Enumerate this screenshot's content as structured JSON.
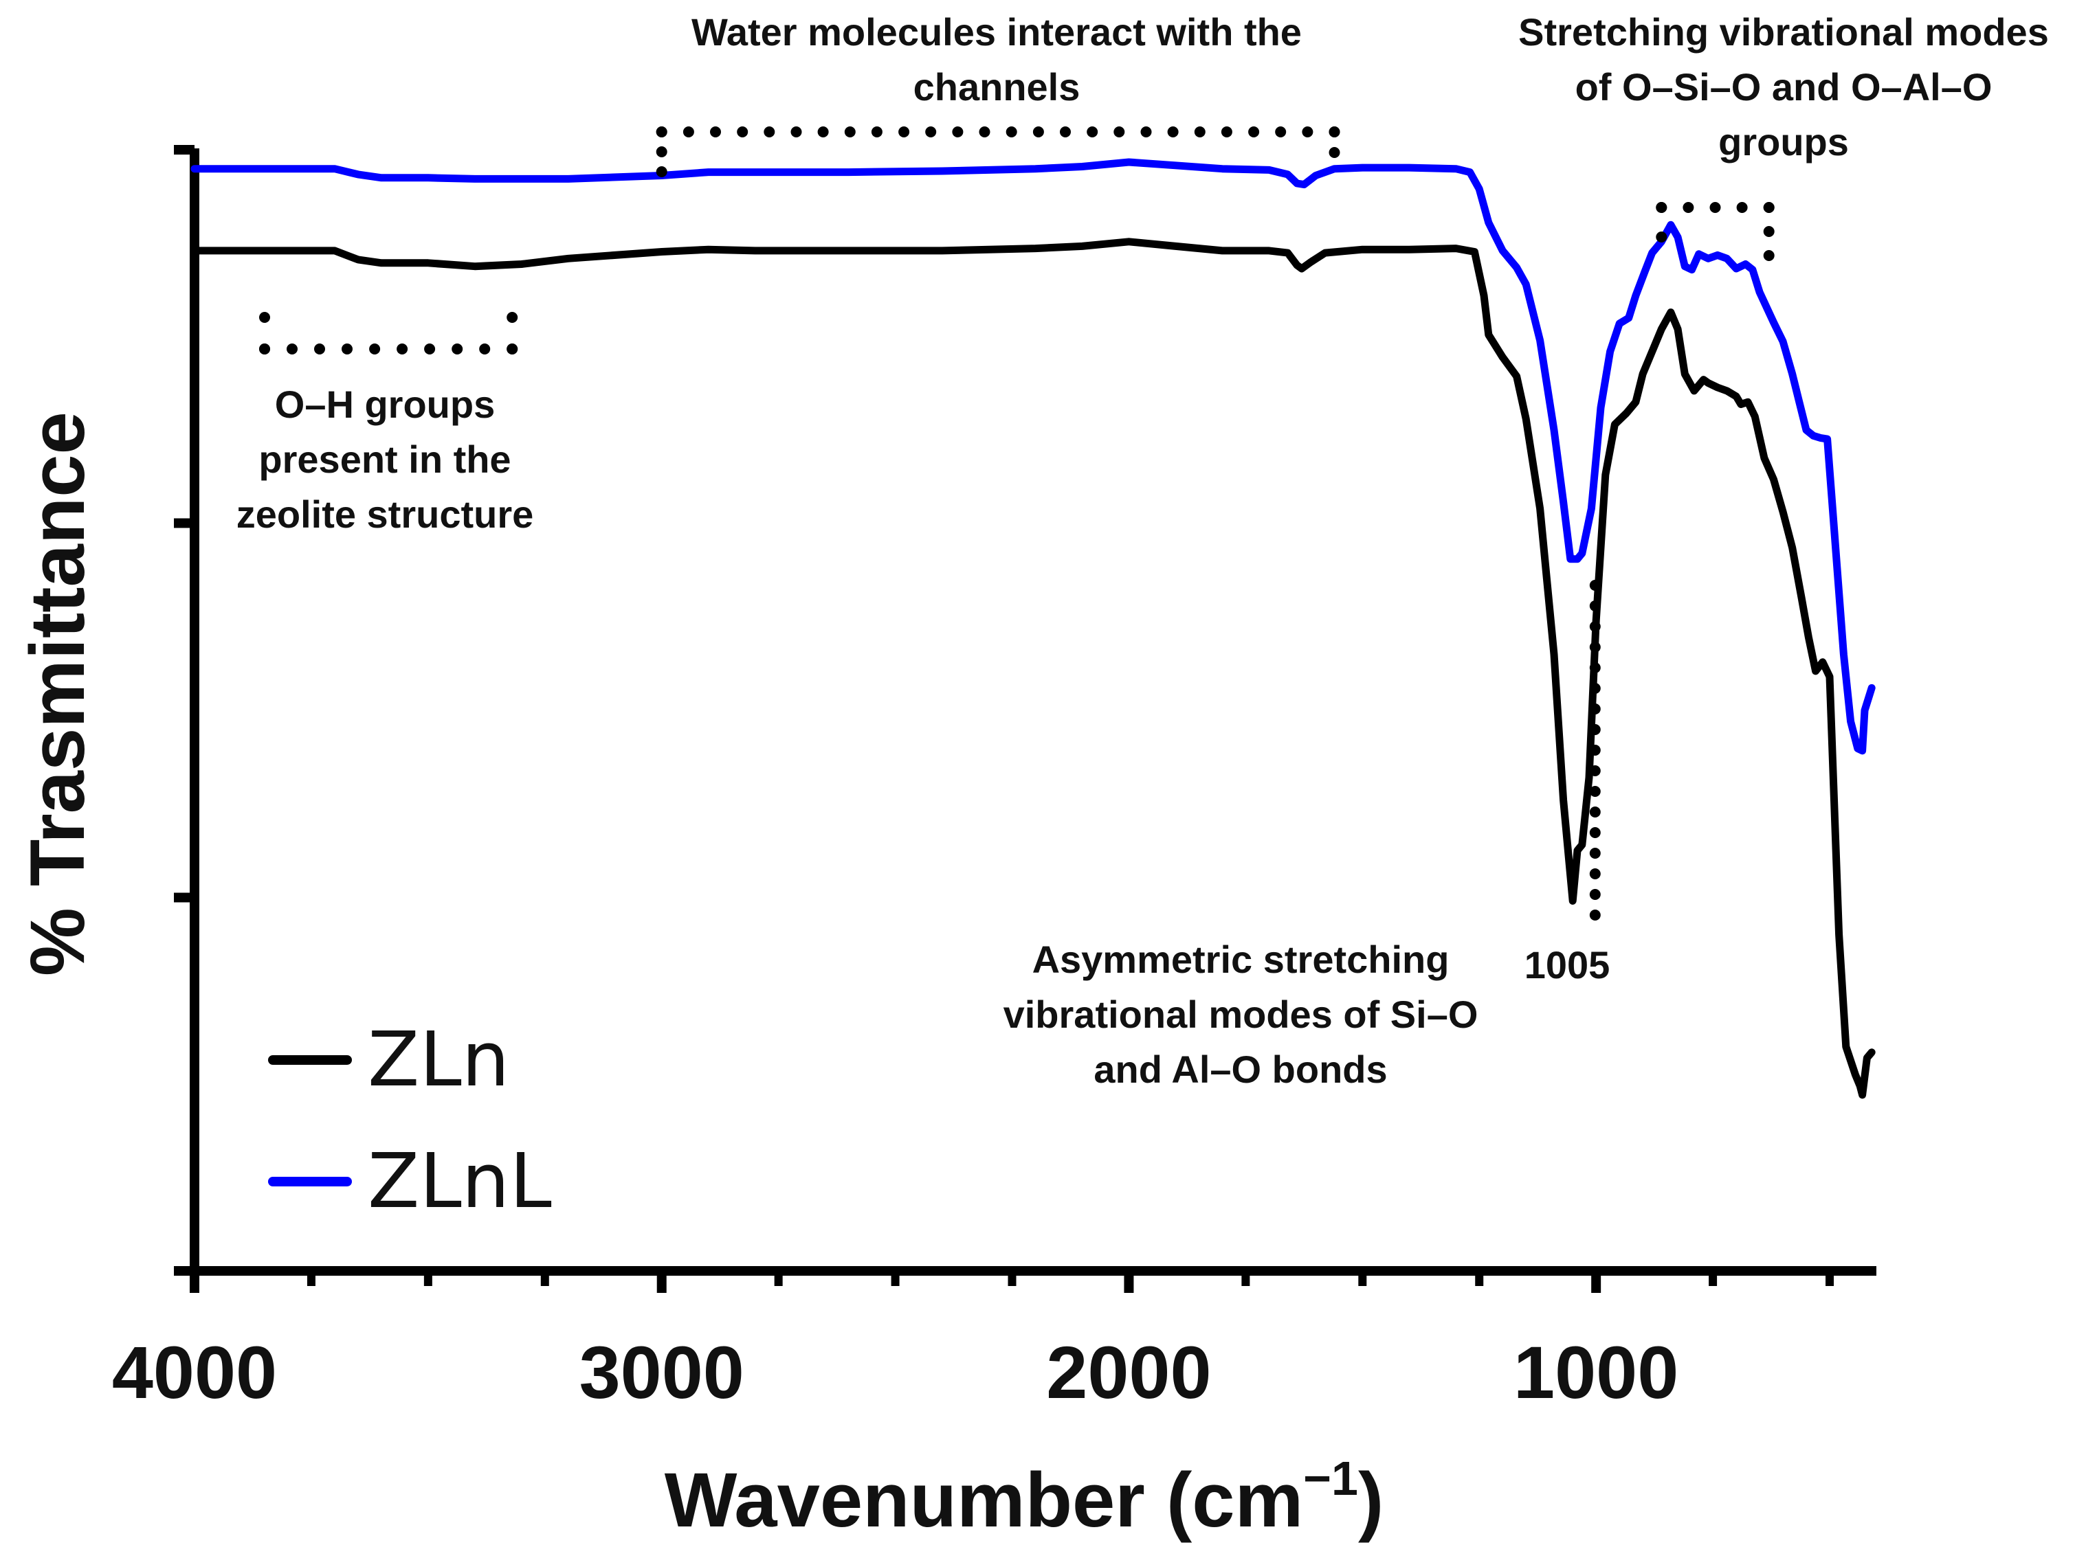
{
  "chart_data": {
    "type": "line",
    "title": "",
    "xlabel": "Wavenumber (cm",
    "xlabel_sup": "−1",
    "xlabel_close": ")",
    "ylabel": "% Trasmittance",
    "xlim": [
      4000,
      400
    ],
    "x_reversed": true,
    "ylim": [
      0,
      100
    ],
    "x_ticks_major": [
      4000,
      3000,
      2000,
      1000
    ],
    "x_ticks_minor": [
      3750,
      3500,
      3250,
      2750,
      2500,
      2250,
      1750,
      1500,
      1250,
      750,
      500
    ],
    "x_tick_labels": [
      "4000",
      "3000",
      "2000",
      "1000"
    ],
    "y_tick_positions": [
      0,
      33.3,
      66.7,
      100
    ],
    "y_tick_labels_shown": false,
    "grid": false,
    "legend_position": "bottom-left",
    "series": [
      {
        "name": "ZLn",
        "color": "#000000",
        "points": [
          [
            4000,
            91
          ],
          [
            3700,
            91
          ],
          [
            3650,
            90.2
          ],
          [
            3600,
            89.9
          ],
          [
            3500,
            89.9
          ],
          [
            3400,
            89.6
          ],
          [
            3300,
            89.8
          ],
          [
            3200,
            90.3
          ],
          [
            3000,
            90.9
          ],
          [
            2900,
            91.1
          ],
          [
            2800,
            91
          ],
          [
            2600,
            91
          ],
          [
            2400,
            91
          ],
          [
            2200,
            91.2
          ],
          [
            2100,
            91.4
          ],
          [
            2000,
            91.8
          ],
          [
            1900,
            91.4
          ],
          [
            1800,
            91
          ],
          [
            1700,
            91
          ],
          [
            1660,
            90.8
          ],
          [
            1640,
            89.7
          ],
          [
            1630,
            89.4
          ],
          [
            1610,
            90
          ],
          [
            1580,
            90.8
          ],
          [
            1500,
            91.1
          ],
          [
            1400,
            91.1
          ],
          [
            1300,
            91.2
          ],
          [
            1260,
            90.9
          ],
          [
            1240,
            87
          ],
          [
            1230,
            83.5
          ],
          [
            1200,
            81.5
          ],
          [
            1170,
            79.8
          ],
          [
            1150,
            76
          ],
          [
            1120,
            68
          ],
          [
            1090,
            55
          ],
          [
            1070,
            42
          ],
          [
            1050,
            33
          ],
          [
            1040,
            37.5
          ],
          [
            1030,
            38
          ],
          [
            1015,
            44
          ],
          [
            1000,
            58
          ],
          [
            980,
            71
          ],
          [
            960,
            75.5
          ],
          [
            935,
            76.5
          ],
          [
            915,
            77.5
          ],
          [
            900,
            80
          ],
          [
            880,
            82
          ],
          [
            860,
            84
          ],
          [
            840,
            85.5
          ],
          [
            825,
            84
          ],
          [
            810,
            80
          ],
          [
            790,
            78.5
          ],
          [
            770,
            79.5
          ],
          [
            760,
            79.2
          ],
          [
            740,
            78.8
          ],
          [
            720,
            78.5
          ],
          [
            700,
            78
          ],
          [
            690,
            77.3
          ],
          [
            675,
            77.5
          ],
          [
            660,
            76.2
          ],
          [
            640,
            72.5
          ],
          [
            620,
            70.6
          ],
          [
            600,
            67.7
          ],
          [
            580,
            64.5
          ],
          [
            560,
            60
          ],
          [
            545,
            56.5
          ],
          [
            530,
            53.5
          ],
          [
            515,
            54.3
          ],
          [
            500,
            53
          ],
          [
            480,
            30
          ],
          [
            465,
            20
          ],
          [
            445,
            17.5
          ],
          [
            435,
            16.5
          ],
          [
            430,
            15.7
          ],
          [
            420,
            19
          ],
          [
            410,
            19.5
          ]
        ]
      },
      {
        "name": "ZLnL",
        "color": "#0000ff",
        "points": [
          [
            4000,
            98.3
          ],
          [
            3700,
            98.3
          ],
          [
            3650,
            97.8
          ],
          [
            3600,
            97.5
          ],
          [
            3500,
            97.5
          ],
          [
            3400,
            97.4
          ],
          [
            3200,
            97.4
          ],
          [
            3000,
            97.7
          ],
          [
            2900,
            98
          ],
          [
            2800,
            98
          ],
          [
            2600,
            98
          ],
          [
            2400,
            98.1
          ],
          [
            2200,
            98.3
          ],
          [
            2100,
            98.5
          ],
          [
            2000,
            98.9
          ],
          [
            1900,
            98.6
          ],
          [
            1800,
            98.3
          ],
          [
            1700,
            98.2
          ],
          [
            1660,
            97.8
          ],
          [
            1640,
            97
          ],
          [
            1625,
            96.9
          ],
          [
            1600,
            97.7
          ],
          [
            1560,
            98.3
          ],
          [
            1500,
            98.4
          ],
          [
            1400,
            98.4
          ],
          [
            1300,
            98.3
          ],
          [
            1270,
            98
          ],
          [
            1250,
            96.5
          ],
          [
            1230,
            93.5
          ],
          [
            1200,
            91
          ],
          [
            1170,
            89.5
          ],
          [
            1150,
            88
          ],
          [
            1120,
            83
          ],
          [
            1090,
            75
          ],
          [
            1070,
            68.6
          ],
          [
            1055,
            63.5
          ],
          [
            1040,
            63.5
          ],
          [
            1030,
            64
          ],
          [
            1010,
            68
          ],
          [
            990,
            77
          ],
          [
            970,
            82
          ],
          [
            950,
            84.5
          ],
          [
            930,
            85
          ],
          [
            915,
            87
          ],
          [
            895,
            89.2
          ],
          [
            880,
            90.8
          ],
          [
            860,
            91.8
          ],
          [
            840,
            93.3
          ],
          [
            825,
            92.2
          ],
          [
            810,
            89.6
          ],
          [
            795,
            89.3
          ],
          [
            780,
            90.7
          ],
          [
            760,
            90.3
          ],
          [
            740,
            90.6
          ],
          [
            720,
            90.3
          ],
          [
            700,
            89.4
          ],
          [
            680,
            89.8
          ],
          [
            665,
            89.3
          ],
          [
            650,
            87.3
          ],
          [
            620,
            84.6
          ],
          [
            600,
            82.9
          ],
          [
            580,
            80
          ],
          [
            565,
            77.5
          ],
          [
            550,
            75
          ],
          [
            535,
            74.5
          ],
          [
            520,
            74.3
          ],
          [
            505,
            74.2
          ],
          [
            490,
            66
          ],
          [
            470,
            55
          ],
          [
            455,
            49
          ],
          [
            440,
            46.6
          ],
          [
            430,
            46.4
          ],
          [
            425,
            50
          ],
          [
            410,
            52
          ]
        ]
      }
    ],
    "annotations": [
      {
        "id": "water",
        "lines": [
          "Water molecules interact with the",
          "channels"
        ],
        "range": [
          3000,
          1560
        ]
      },
      {
        "id": "oh",
        "lines": [
          "O–H groups",
          "present in the",
          "zeolite structure"
        ],
        "range": [
          3850,
          3320
        ]
      },
      {
        "id": "stretch",
        "lines": [
          "Stretching vibrational modes",
          "of O–Si–O and O–Al–O",
          "groups"
        ],
        "range": [
          860,
          630
        ]
      },
      {
        "id": "asym",
        "lines": [
          "Asymmetric stretching",
          "vibrational modes of Si–O",
          "and Al–O bonds"
        ],
        "peak": 1005,
        "peak_label": "1005"
      }
    ]
  }
}
